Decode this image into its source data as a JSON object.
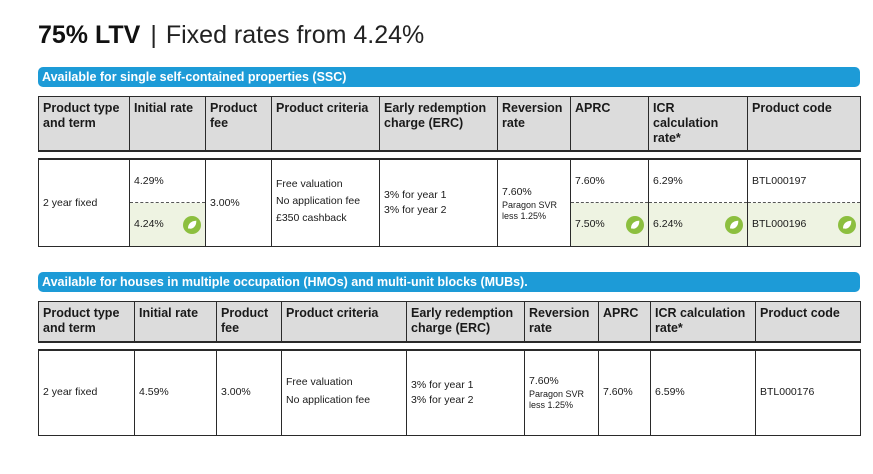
{
  "heading": {
    "ltv": "75% LTV",
    "separator": "|",
    "rates": "Fixed rates from 4.24%"
  },
  "headers_ssc": [
    "Product type and term",
    "Initial rate",
    "Product fee",
    "Product criteria",
    "Early redemption charge (ERC)",
    "Reversion rate",
    "APRC",
    "ICR calculation rate*",
    "Product code"
  ],
  "headers_hmo": [
    "Product type and term",
    "Initial rate",
    "Product fee",
    "Product criteria",
    "Early redemption charge (ERC)",
    "Reversion rate",
    "APRC",
    "ICR calculation rate*",
    "Product code"
  ],
  "ssc": {
    "banner": "Available for single self-contained properties (SSC)",
    "product_type": "2 year fixed",
    "initial_rate_1": "4.29%",
    "initial_rate_2": "4.24%",
    "product_fee": "3.00%",
    "criteria": [
      "Free valuation",
      "No application fee",
      "£350 cashback"
    ],
    "erc": [
      "3% for year 1",
      "3% for year 2"
    ],
    "reversion_rate": "7.60%",
    "reversion_note": [
      "Paragon SVR",
      "less 1.25%"
    ],
    "aprc_1": "7.60%",
    "aprc_2": "7.50%",
    "icr_1": "6.29%",
    "icr_2": "6.24%",
    "code_1": "BTL000197",
    "code_2": "BTL000196",
    "green_color": "#8cbf3f",
    "green_bg": "#eef3e2"
  },
  "hmo": {
    "banner": "Available for houses in multiple occupation (HMOs) and multi-unit blocks (MUBs).",
    "product_type": "2 year fixed",
    "initial_rate": "4.59%",
    "product_fee": "3.00%",
    "criteria": [
      "Free valuation",
      "No application fee"
    ],
    "erc": [
      "3% for year 1",
      "3% for year 2"
    ],
    "reversion_rate": "7.60%",
    "reversion_note": [
      "Paragon SVR",
      "less 1.25%"
    ],
    "aprc": "7.60%",
    "icr": "6.59%",
    "code": "BTL000176"
  },
  "colors": {
    "banner": "#1d9bd7",
    "header_bg": "#dcdcdc"
  },
  "icons": [
    "leaf-icon"
  ]
}
